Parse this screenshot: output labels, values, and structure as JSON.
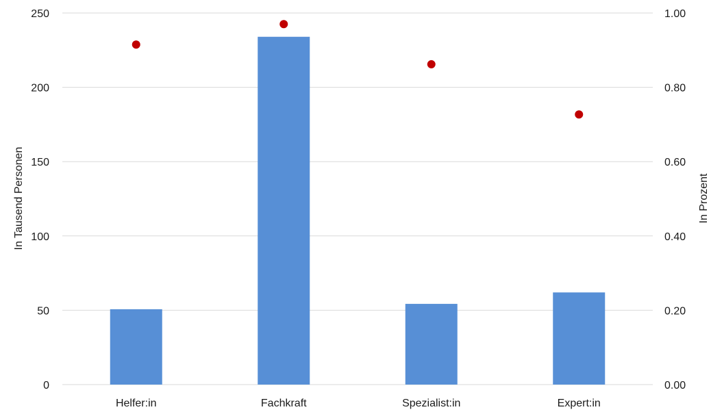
{
  "chart_data": {
    "type": "bar",
    "categories": [
      "Helfer:in",
      "Fachkraft",
      "Spezialist:in",
      "Expert:in"
    ],
    "series": [
      {
        "type": "bar",
        "axis": "left",
        "color": "#578fd6",
        "values": [
          50.7,
          234,
          54.3,
          62
        ]
      },
      {
        "type": "scatter",
        "axis": "right",
        "color": "#c00000",
        "values": [
          0.915,
          0.97,
          0.862,
          0.727
        ]
      }
    ],
    "title": "",
    "xlabel": "",
    "ylabel": "In Tausend Personen",
    "y2label": "In Prozent",
    "ylim": [
      0,
      250
    ],
    "y2lim": [
      0,
      1.0
    ],
    "yticks": [
      "0",
      "50",
      "100",
      "150",
      "200",
      "250"
    ],
    "y2ticks": [
      "0.00",
      "0.20",
      "0.40",
      "0.60",
      "0.80",
      "1.00"
    ],
    "grid": true,
    "gridColor": "#d9d9d9"
  }
}
